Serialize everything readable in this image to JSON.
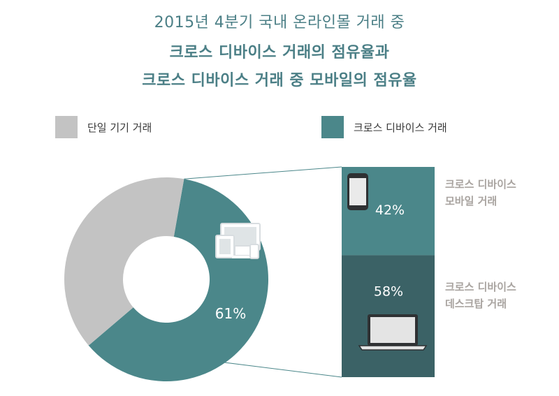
{
  "title": {
    "line1": "2015년 4분기 국내 온라인몰 거래 중",
    "line2": "크로스 디바이스 거래의 점유율과",
    "line3": "크로스 디바이스 거래 중 모바일의 점유율"
  },
  "legend": {
    "items": [
      {
        "label": "단일 기기 거래",
        "color": "#c3c3c3"
      },
      {
        "label": "크로스 디바이스 거래",
        "color": "#4b878a"
      }
    ]
  },
  "side_labels": {
    "mobile": [
      "크로스 디바이스",
      "모바일 거래"
    ],
    "desktop": [
      "크로스 디바이스",
      "데스크탑 거래"
    ]
  },
  "chart_data": [
    {
      "type": "pie",
      "variant": "donut",
      "slices": [
        {
          "label": "단일 기기 거래",
          "value": 39,
          "color": "#c3c3c3"
        },
        {
          "label": "크로스 디바이스 거래",
          "value": 61,
          "color": "#4b878a",
          "data_label": "61%"
        }
      ]
    },
    {
      "type": "bar",
      "variant": "100% stacked",
      "categories": [
        "크로스 디바이스 거래"
      ],
      "series": [
        {
          "name": "크로스 디바이스 모바일 거래",
          "values": [
            42
          ],
          "color": "#4b878a",
          "data_label": "42%"
        },
        {
          "name": "크로스 디바이스 데스크탑 거래",
          "values": [
            58
          ],
          "color": "#3b6266",
          "data_label": "58%"
        }
      ]
    }
  ],
  "icons": [
    "devices-icon",
    "smartphone-icon",
    "laptop-icon"
  ]
}
